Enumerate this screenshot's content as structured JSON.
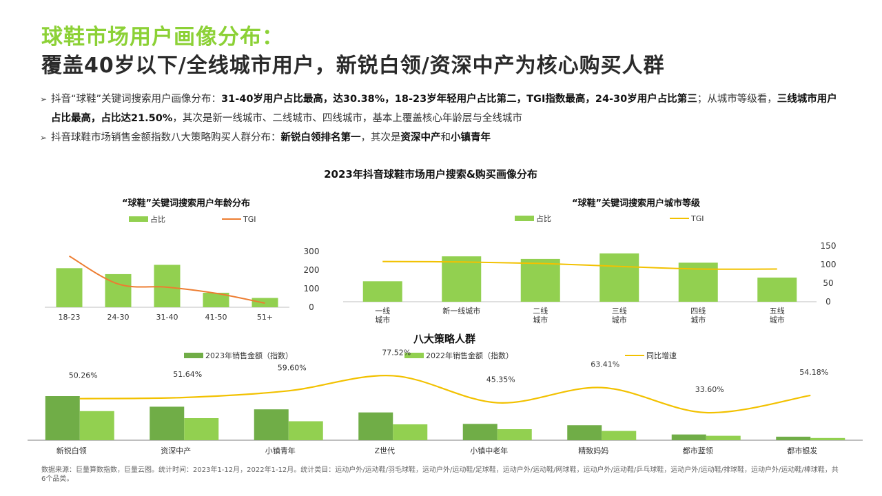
{
  "header": {
    "title": "球鞋市场用户画像分布：",
    "headline": "覆盖40岁以下/全线城市用户，新锐白领/资深中产为核心购买人群"
  },
  "bullets": [
    {
      "marker": "➢",
      "parts": [
        {
          "text": "抖音“球鞋”关键词搜索用户画像分布：",
          "bold": false
        },
        {
          "text": "31-40岁用户占比最高，达30.38%，18-23岁年轻用户占比第二，TGI指数最高，24-30岁用户占比第三",
          "bold": true
        },
        {
          "text": "；从城市等级看，",
          "bold": false
        },
        {
          "text": "三线城市用户占比最高，占比达21.50%",
          "bold": true
        },
        {
          "text": "，其次是新一线城市、二线城市、四线城市，基本上覆盖核心年龄层与全线城市",
          "bold": false
        }
      ]
    },
    {
      "marker": "➢",
      "parts": [
        {
          "text": "抖音球鞋市场销售金额指数八大策略购买人群分布：",
          "bold": false
        },
        {
          "text": "新锐白领排名第一",
          "bold": true
        },
        {
          "text": "，其次是",
          "bold": false
        },
        {
          "text": "资深中产",
          "bold": true
        },
        {
          "text": "和",
          "bold": false
        },
        {
          "text": "小镇青年",
          "bold": true
        }
      ]
    }
  ],
  "main_title": "2023年抖音球鞋市场用户搜索&购买画像分布",
  "source": "数据来源：巨量算数指数，巨量云图。统计时间：2023年1-12月，2022年1-12月。统计类目：运动户外/运动鞋/羽毛球鞋，运动户外/运动鞋/足球鞋，运动户外/运动鞋/网球鞋，运动户外/运动鞋/乒乓球鞋，运动户外/运动鞋/排球鞋，运动户外/运动鞋/棒球鞋，共6个品类。",
  "colors": {
    "title_green": "#8cd136",
    "bar_light": "#92d050",
    "bar_dark": "#70ad47",
    "line_orange": "#ed7d31",
    "line_yellow": "#f2c100"
  },
  "chart_data": [
    {
      "type": "bar",
      "title": "“球鞋”关键词搜索用户年龄分布",
      "categories": [
        "18-23",
        "24-30",
        "31-40",
        "41-50",
        "51+"
      ],
      "series": [
        {
          "name": "占比",
          "kind": "bar",
          "values": [
            210,
            178,
            228,
            78,
            50
          ]
        },
        {
          "name": "TGI",
          "kind": "line",
          "values": [
            275,
            125,
            108,
            75,
            22
          ]
        }
      ],
      "ylim": [
        0,
        300
      ],
      "yticks": [
        0,
        100,
        200,
        300
      ],
      "legend": "top"
    },
    {
      "type": "bar",
      "title": "“球鞋”关键词搜索用户城市等级",
      "categories": [
        "一线\n城市",
        "新一线城市",
        "二线\n城市",
        "三线\n城市",
        "四线\n城市",
        "五线\n城市"
      ],
      "series": [
        {
          "name": "占比",
          "kind": "bar",
          "values": [
            55,
            122,
            115,
            130,
            105,
            65
          ]
        },
        {
          "name": "TGI",
          "kind": "line",
          "values": [
            108,
            107,
            103,
            95,
            88,
            88
          ]
        }
      ],
      "ylim": [
        0,
        150
      ],
      "yticks": [
        0,
        50,
        100,
        150
      ],
      "legend": "top"
    },
    {
      "type": "bar",
      "title": "八大策略人群",
      "categories": [
        "新锐白领",
        "资深中产",
        "小镇青年",
        "Z世代",
        "小镇中老年",
        "精致妈妈",
        "都市蓝领",
        "都市银发"
      ],
      "series": [
        {
          "name": "2023年销售金额（指数）",
          "kind": "bar",
          "values": [
            100,
            76,
            70,
            63,
            37,
            34,
            13,
            8
          ]
        },
        {
          "name": "2022年销售金额（指数）",
          "kind": "bar",
          "values": [
            66,
            50,
            43,
            36,
            25,
            21,
            10,
            5
          ]
        },
        {
          "name": "同比增速",
          "kind": "line",
          "values": [
            50.26,
            51.64,
            59.6,
            77.52,
            45.35,
            63.41,
            33.6,
            54.18
          ],
          "labels": [
            "50.26%",
            "51.64%",
            "59.60%",
            "77.52%",
            "45.35%",
            "63.41%",
            "33.60%",
            "54.18%"
          ]
        }
      ],
      "legend": "top"
    }
  ]
}
